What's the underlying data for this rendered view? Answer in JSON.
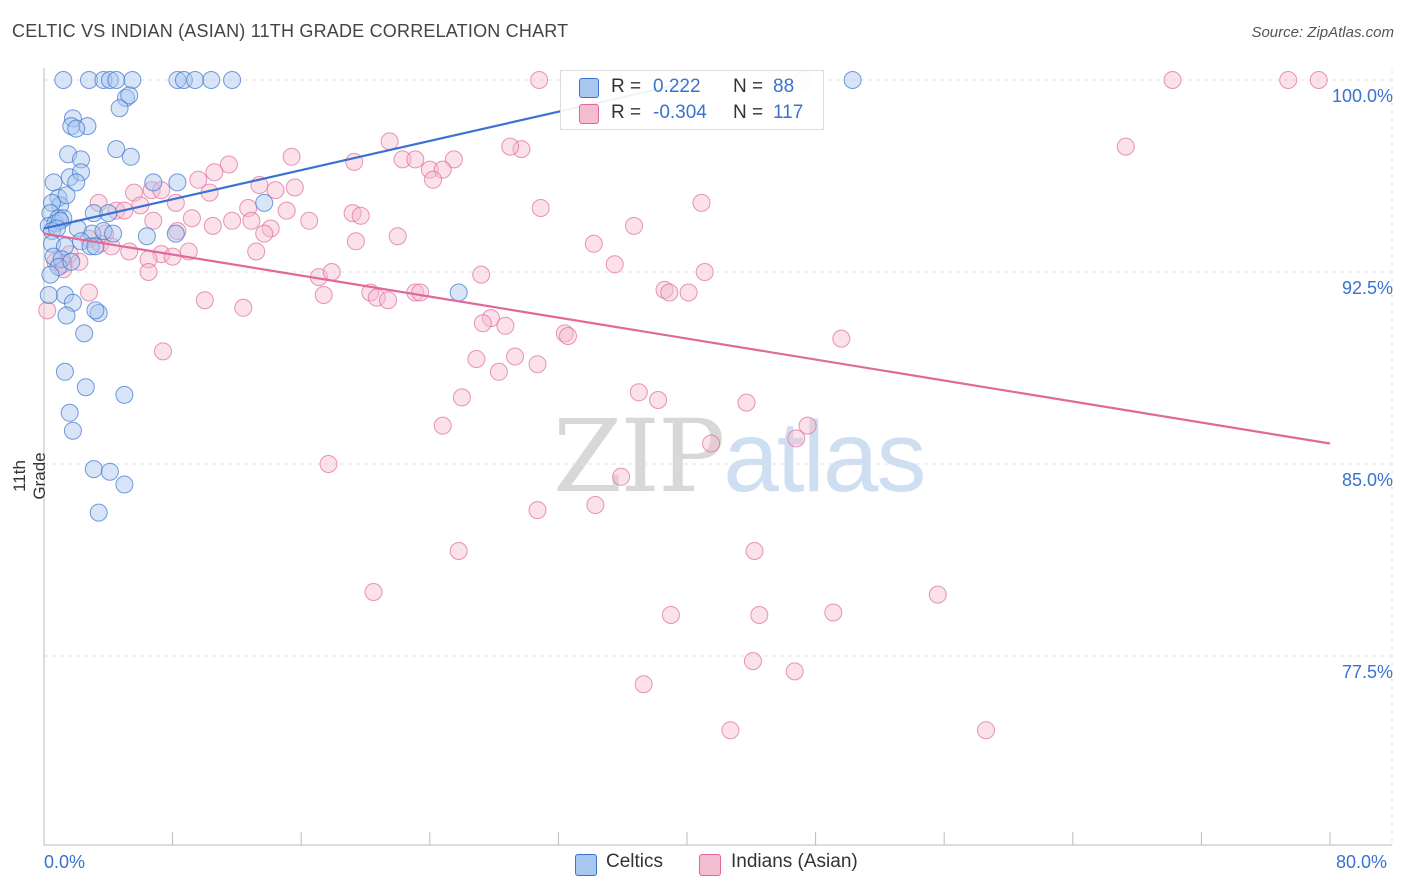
{
  "title": "CELTIC VS INDIAN (ASIAN) 11TH GRADE CORRELATION CHART",
  "source": "Source: ZipAtlas.com",
  "watermark": {
    "zip": "ZIP",
    "atlas": "atlas"
  },
  "colors": {
    "celtics": "#3a72cf",
    "indians": "#e0699a",
    "celtics_fill": "#a9c6ee",
    "indians_fill": "#f4bcd0",
    "tick_text": "#3a72cf"
  },
  "legend_box": {
    "rows": [
      {
        "r_label": "R =",
        "r_value": " 0.222",
        "n_label": "N =",
        "n_value": "88"
      },
      {
        "r_label": "R =",
        "r_value": "-0.304",
        "n_label": "N =",
        "n_value": "117"
      }
    ]
  },
  "bottom_legend": [
    "Celtics",
    "Indians (Asian)"
  ],
  "chart_data": {
    "type": "scatter",
    "title": "CELTIC VS INDIAN (ASIAN) 11TH GRADE CORRELATION CHART",
    "xlabel": "",
    "ylabel": "11th Grade",
    "x_tick_labels": [
      "0.0%",
      "80.0%"
    ],
    "y_tick_labels": [
      "100.0%",
      "92.5%",
      "85.0%",
      "77.5%"
    ],
    "y_ticks": [
      100.0,
      92.5,
      85.0,
      77.5
    ],
    "xlim": [
      0,
      80
    ],
    "ylim": [
      70.3,
      100.8
    ],
    "grid": true,
    "series": [
      {
        "name": "Celtics",
        "r": 0.222,
        "n": 88,
        "trend": {
          "x": [
            0,
            40
          ],
          "y": [
            94.2,
            99.9
          ]
        },
        "points": [
          [
            1.2,
            100
          ],
          [
            2.8,
            100
          ],
          [
            3.7,
            100
          ],
          [
            4.1,
            100
          ],
          [
            4.5,
            100
          ],
          [
            5.5,
            100
          ],
          [
            8.3,
            100
          ],
          [
            8.7,
            100
          ],
          [
            9.4,
            100
          ],
          [
            10.4,
            100
          ],
          [
            11.7,
            100
          ],
          [
            50.3,
            100
          ],
          [
            5.1,
            99.3
          ],
          [
            5.3,
            99.4
          ],
          [
            4.7,
            98.9
          ],
          [
            1.8,
            98.5
          ],
          [
            1.7,
            98.2
          ],
          [
            2.7,
            98.2
          ],
          [
            2.0,
            98.1
          ],
          [
            4.5,
            97.3
          ],
          [
            5.4,
            97.0
          ],
          [
            1.5,
            97.1
          ],
          [
            2.3,
            96.9
          ],
          [
            1.6,
            96.2
          ],
          [
            2.3,
            96.4
          ],
          [
            2.0,
            96.0
          ],
          [
            0.6,
            96.0
          ],
          [
            6.8,
            96.0
          ],
          [
            8.3,
            96.0
          ],
          [
            0.9,
            95.4
          ],
          [
            1.0,
            95.1
          ],
          [
            0.5,
            95.2
          ],
          [
            1.4,
            95.5
          ],
          [
            3.1,
            94.8
          ],
          [
            4.0,
            94.8
          ],
          [
            13.7,
            95.2
          ],
          [
            0.4,
            94.8
          ],
          [
            0.9,
            94.6
          ],
          [
            0.3,
            94.3
          ],
          [
            0.7,
            94.4
          ],
          [
            1.2,
            94.6
          ],
          [
            1.0,
            94.5
          ],
          [
            0.5,
            94.1
          ],
          [
            2.1,
            94.2
          ],
          [
            0.8,
            94.2
          ],
          [
            3.0,
            94.0
          ],
          [
            6.4,
            93.9
          ],
          [
            8.2,
            94.0
          ],
          [
            3.7,
            94.1
          ],
          [
            4.3,
            94.0
          ],
          [
            0.5,
            93.6
          ],
          [
            1.3,
            93.5
          ],
          [
            2.3,
            93.7
          ],
          [
            2.9,
            93.5
          ],
          [
            3.2,
            93.5
          ],
          [
            0.6,
            93.1
          ],
          [
            1.1,
            93.0
          ],
          [
            0.9,
            92.7
          ],
          [
            0.4,
            92.4
          ],
          [
            1.7,
            92.9
          ],
          [
            1.3,
            91.6
          ],
          [
            1.8,
            91.3
          ],
          [
            3.4,
            90.9
          ],
          [
            2.5,
            90.1
          ],
          [
            1.4,
            90.8
          ],
          [
            25.8,
            91.7
          ],
          [
            0.3,
            91.6
          ],
          [
            3.2,
            91.0
          ],
          [
            1.3,
            88.6
          ],
          [
            2.6,
            88.0
          ],
          [
            5.0,
            87.7
          ],
          [
            1.6,
            87.0
          ],
          [
            1.8,
            86.3
          ],
          [
            3.1,
            84.8
          ],
          [
            4.1,
            84.7
          ],
          [
            5.0,
            84.2
          ],
          [
            3.4,
            83.1
          ]
        ]
      },
      {
        "name": "Indians (Asian)",
        "r": -0.304,
        "n": 117,
        "trend": {
          "x": [
            0,
            80
          ],
          "y": [
            94.0,
            85.8
          ]
        },
        "points": [
          [
            30.8,
            100
          ],
          [
            47.2,
            100
          ],
          [
            70.2,
            100
          ],
          [
            77.4,
            100
          ],
          [
            79.3,
            100
          ],
          [
            21.5,
            97.6
          ],
          [
            29.7,
            97.3
          ],
          [
            29.0,
            97.4
          ],
          [
            67.3,
            97.4
          ],
          [
            15.4,
            97.0
          ],
          [
            19.3,
            96.8
          ],
          [
            22.3,
            96.9
          ],
          [
            23.1,
            96.9
          ],
          [
            25.5,
            96.9
          ],
          [
            11.5,
            96.7
          ],
          [
            10.6,
            96.4
          ],
          [
            24.0,
            96.5
          ],
          [
            24.8,
            96.5
          ],
          [
            24.2,
            96.1
          ],
          [
            9.6,
            96.1
          ],
          [
            13.4,
            95.9
          ],
          [
            14.4,
            95.7
          ],
          [
            15.6,
            95.8
          ],
          [
            5.6,
            95.6
          ],
          [
            6.7,
            95.7
          ],
          [
            7.3,
            95.7
          ],
          [
            10.3,
            95.6
          ],
          [
            8.2,
            95.2
          ],
          [
            3.4,
            95.2
          ],
          [
            12.7,
            95.0
          ],
          [
            4.5,
            94.9
          ],
          [
            5.0,
            94.9
          ],
          [
            6.0,
            95.1
          ],
          [
            15.1,
            94.9
          ],
          [
            19.2,
            94.8
          ],
          [
            30.9,
            95.0
          ],
          [
            40.9,
            95.2
          ],
          [
            6.8,
            94.5
          ],
          [
            9.2,
            94.6
          ],
          [
            11.7,
            94.5
          ],
          [
            12.9,
            94.5
          ],
          [
            16.5,
            94.5
          ],
          [
            19.7,
            94.7
          ],
          [
            10.5,
            94.3
          ],
          [
            14.1,
            94.2
          ],
          [
            13.7,
            94.0
          ],
          [
            8.3,
            94.1
          ],
          [
            22.0,
            93.9
          ],
          [
            36.7,
            94.3
          ],
          [
            3.8,
            94.0
          ],
          [
            2.8,
            93.8
          ],
          [
            3.5,
            93.6
          ],
          [
            34.2,
            93.6
          ],
          [
            19.4,
            93.7
          ],
          [
            4.2,
            93.5
          ],
          [
            5.3,
            93.3
          ],
          [
            7.3,
            93.2
          ],
          [
            8.0,
            93.1
          ],
          [
            6.5,
            93.0
          ],
          [
            9.0,
            93.3
          ],
          [
            13.2,
            93.3
          ],
          [
            1.6,
            93.2
          ],
          [
            0.7,
            92.9
          ],
          [
            2.2,
            92.9
          ],
          [
            1.2,
            92.8
          ],
          [
            35.5,
            92.8
          ],
          [
            41.1,
            92.5
          ],
          [
            6.5,
            92.5
          ],
          [
            17.1,
            92.3
          ],
          [
            17.9,
            92.5
          ],
          [
            27.2,
            92.4
          ],
          [
            1.2,
            92.6
          ],
          [
            2.8,
            91.7
          ],
          [
            17.4,
            91.6
          ],
          [
            20.3,
            91.7
          ],
          [
            20.7,
            91.5
          ],
          [
            21.4,
            91.4
          ],
          [
            23.1,
            91.7
          ],
          [
            23.4,
            91.7
          ],
          [
            38.6,
            91.8
          ],
          [
            38.9,
            91.7
          ],
          [
            40.1,
            91.7
          ],
          [
            10.0,
            91.4
          ],
          [
            12.4,
            91.1
          ],
          [
            0.2,
            91.0
          ],
          [
            27.8,
            90.7
          ],
          [
            28.7,
            90.4
          ],
          [
            27.3,
            90.5
          ],
          [
            32.4,
            90.1
          ],
          [
            32.6,
            90.0
          ],
          [
            49.6,
            89.9
          ],
          [
            7.4,
            89.4
          ],
          [
            26.9,
            89.1
          ],
          [
            29.3,
            89.2
          ],
          [
            30.7,
            88.9
          ],
          [
            28.3,
            88.6
          ],
          [
            37.0,
            87.8
          ],
          [
            38.2,
            87.5
          ],
          [
            43.7,
            87.4
          ],
          [
            26.0,
            87.6
          ],
          [
            24.8,
            86.5
          ],
          [
            47.5,
            86.5
          ],
          [
            41.5,
            85.8
          ],
          [
            46.8,
            86.0
          ],
          [
            17.7,
            85.0
          ],
          [
            35.9,
            84.5
          ],
          [
            30.7,
            83.2
          ],
          [
            34.3,
            83.4
          ],
          [
            25.8,
            81.6
          ],
          [
            44.2,
            81.6
          ],
          [
            20.5,
            80.0
          ],
          [
            39.0,
            79.1
          ],
          [
            44.5,
            79.1
          ],
          [
            49.1,
            79.2
          ],
          [
            55.6,
            79.9
          ],
          [
            44.1,
            77.3
          ],
          [
            46.7,
            76.9
          ],
          [
            37.3,
            76.4
          ],
          [
            42.7,
            74.6
          ],
          [
            58.6,
            74.6
          ]
        ]
      }
    ]
  }
}
